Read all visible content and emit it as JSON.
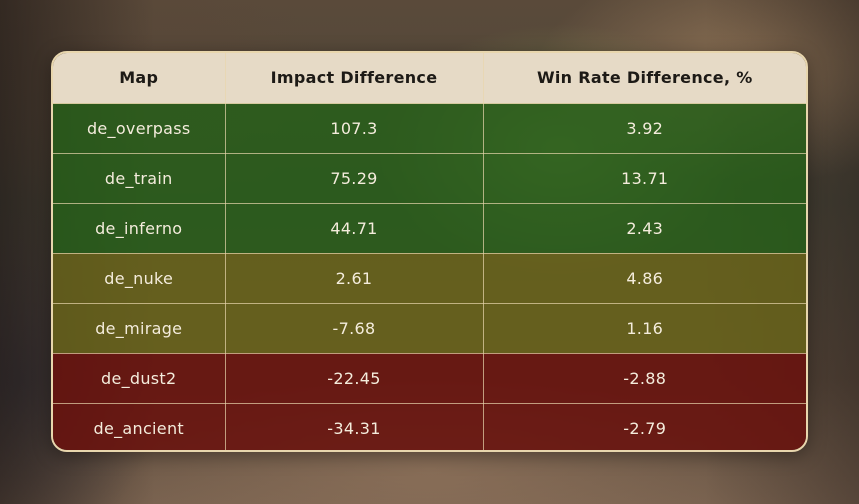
{
  "table": {
    "headers": [
      "Map",
      "Impact Difference",
      "Win Rate Difference, %"
    ],
    "rows": [
      {
        "map": "de_overpass",
        "impact": "107.3",
        "winrate": "3.92",
        "tone": "green"
      },
      {
        "map": "de_train",
        "impact": "75.29",
        "winrate": "13.71",
        "tone": "green"
      },
      {
        "map": "de_inferno",
        "impact": "44.71",
        "winrate": "2.43",
        "tone": "green"
      },
      {
        "map": "de_nuke",
        "impact": "2.61",
        "winrate": "4.86",
        "tone": "olive"
      },
      {
        "map": "de_mirage",
        "impact": "-7.68",
        "winrate": "1.16",
        "tone": "olive"
      },
      {
        "map": "de_dust2",
        "impact": "-22.45",
        "winrate": "-2.88",
        "tone": "red"
      },
      {
        "map": "de_ancient",
        "impact": "-34.31",
        "winrate": "-2.79",
        "tone": "red"
      }
    ]
  },
  "colors": {
    "green": "#265f19",
    "olive": "#69641a",
    "red": "#69120e",
    "header_bg": "#e6dac6",
    "border": "#e8d6ad"
  }
}
